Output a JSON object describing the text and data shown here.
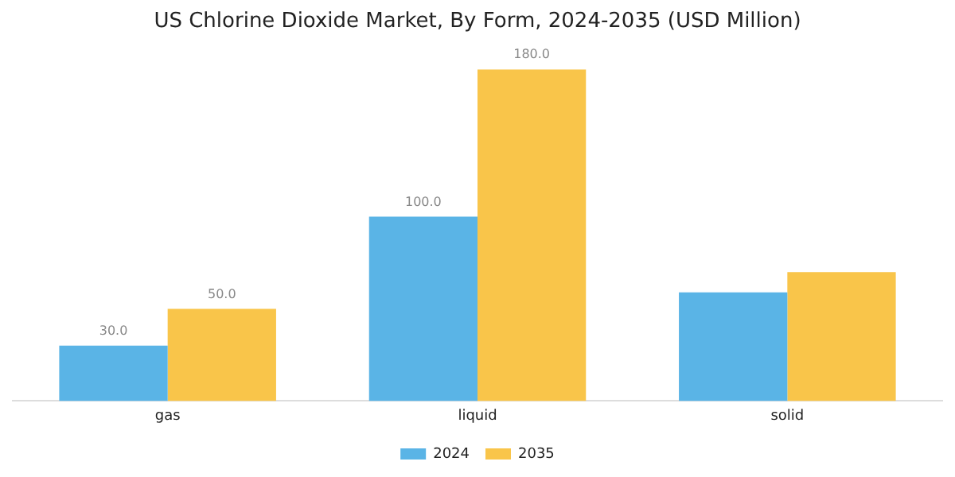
{
  "chart_data": {
    "type": "bar",
    "title": "US Chlorine Dioxide Market, By Form, 2024-2035 (USD Million)",
    "categories": [
      "gas",
      "liquid",
      "solid"
    ],
    "series": [
      {
        "name": "2024",
        "color": "#5ab4e6",
        "values": [
          30,
          100,
          59
        ],
        "value_labels": [
          "30.0",
          "100.0",
          null
        ]
      },
      {
        "name": "2035",
        "color": "#f9c54a",
        "values": [
          50,
          180,
          70
        ],
        "value_labels": [
          "50.0",
          "180.0",
          null
        ]
      }
    ],
    "legend": "bottom",
    "grid": false,
    "tick_labels": "x"
  }
}
